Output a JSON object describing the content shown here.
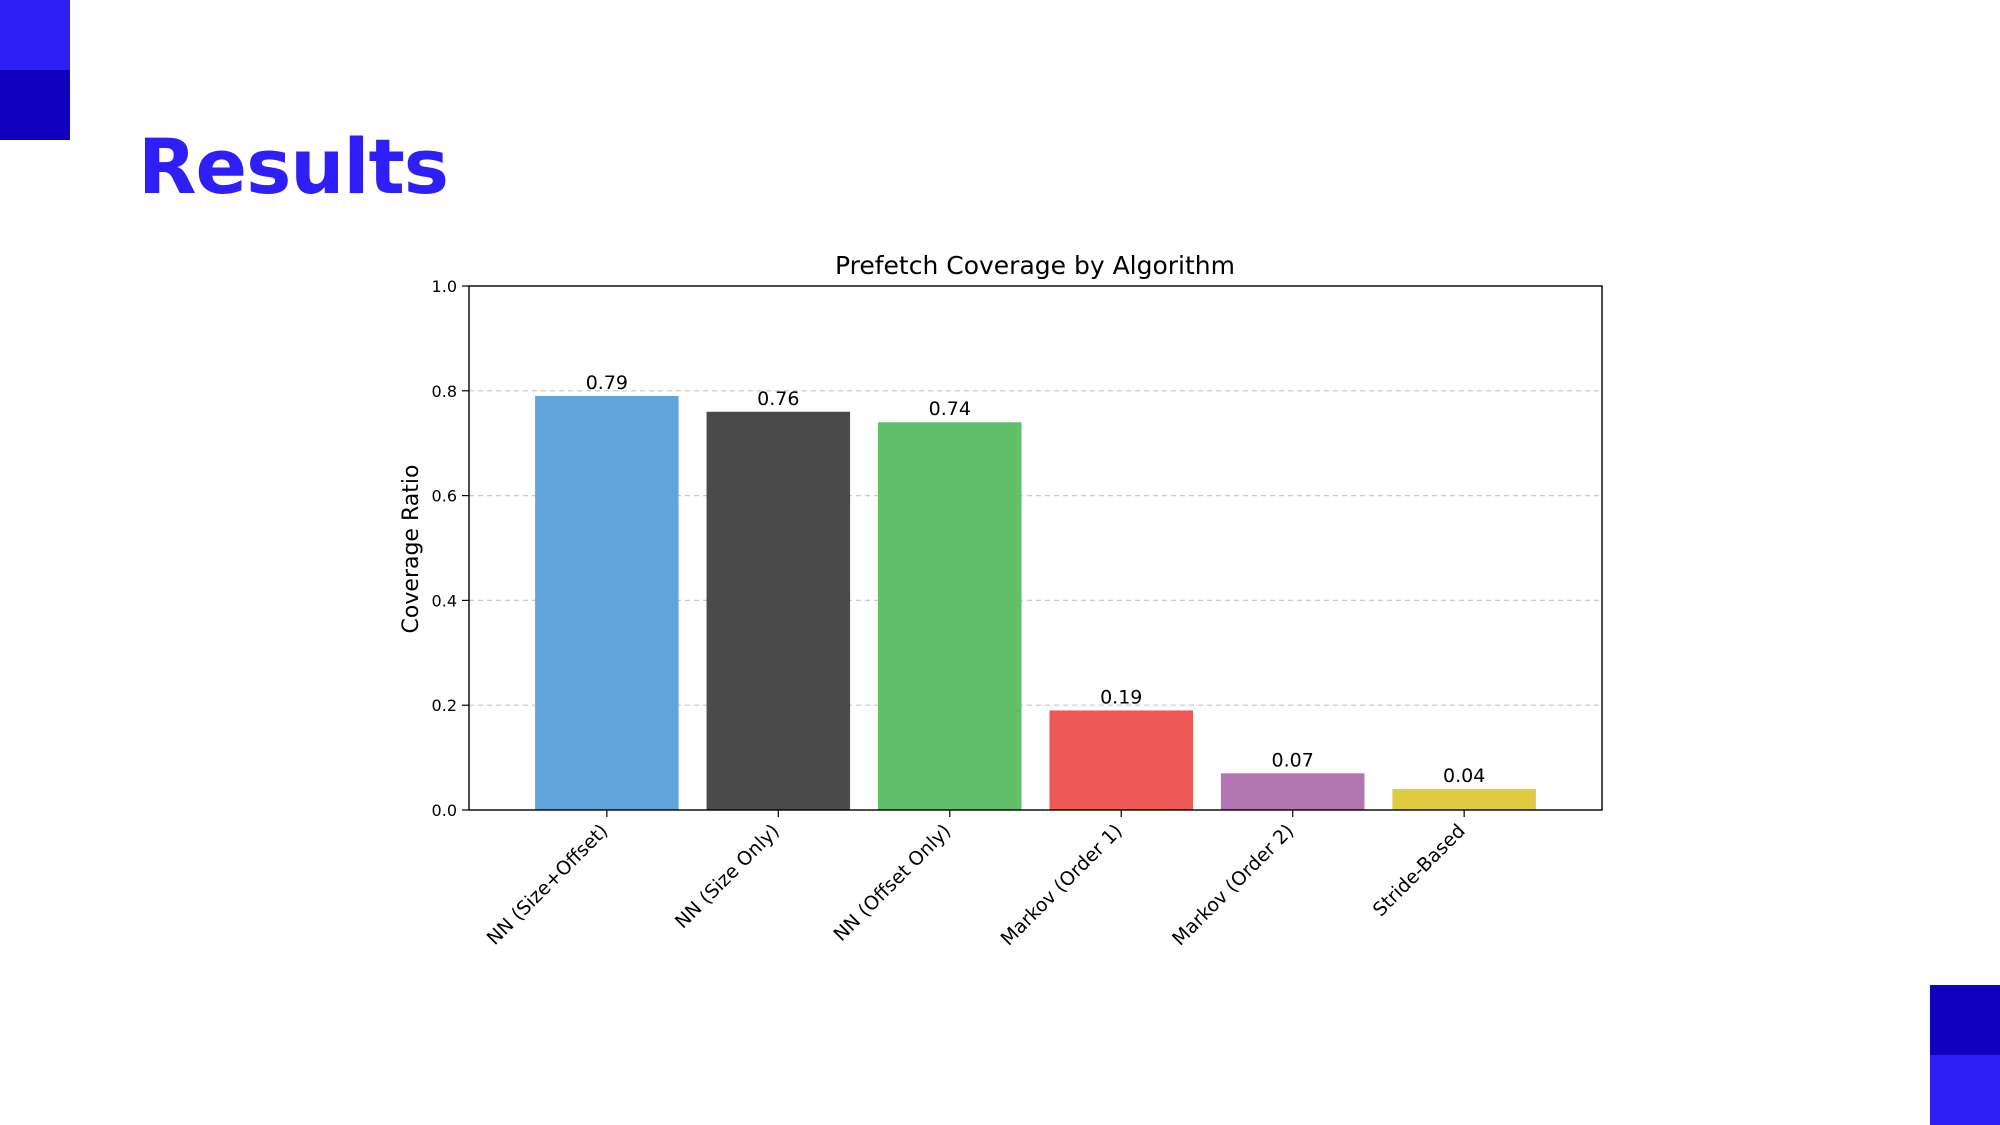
{
  "slide": {
    "title": "Results",
    "colors": {
      "accent": "#2d1ff5",
      "accent_dark": "#1200c0"
    }
  },
  "chart_data": {
    "type": "bar",
    "title": "Prefetch Coverage by Algorithm",
    "xlabel": "",
    "ylabel": "Coverage Ratio",
    "ylim": [
      0,
      1.0
    ],
    "yticks": [
      "0.0",
      "0.2",
      "0.4",
      "0.6",
      "0.8",
      "1.0"
    ],
    "grid": "horizontal-dashed",
    "categories": [
      "NN (Size+Offset)",
      "NN (Size Only)",
      "NN (Offset Only)",
      "Markov (Order 1)",
      "Markov (Order 2)",
      "Stride-Based"
    ],
    "values": [
      0.79,
      0.76,
      0.74,
      0.19,
      0.07,
      0.04
    ],
    "labels": [
      "0.79",
      "0.76",
      "0.74",
      "0.19",
      "0.07",
      "0.04"
    ],
    "colors": [
      "#5fa5da",
      "#4b4b4b",
      "#61bf69",
      "#f05856",
      "#b175b2",
      "#decb40"
    ]
  }
}
